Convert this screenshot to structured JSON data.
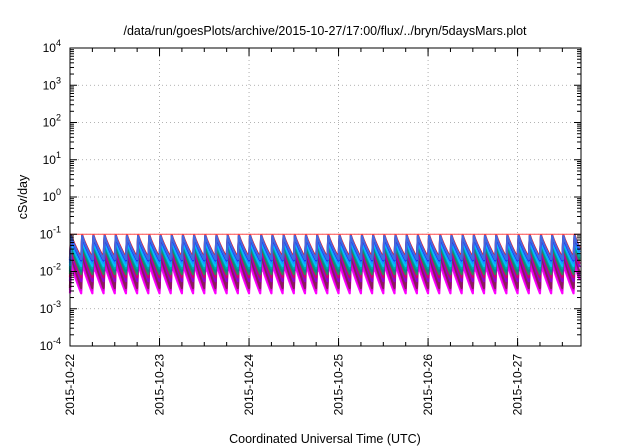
{
  "chart_data": {
    "type": "line",
    "title": "/data/run/goesPlots/archive/2015-10-27/17:00/flux/../bryn/5daysMars.plot",
    "xlabel": "Coordinated Universal Time (UTC)",
    "ylabel": "cSv/day",
    "x_range": [
      "2015-10-22T00:00",
      "2015-10-27T17:00"
    ],
    "x_ticks": [
      "2015-10-22",
      "2015-10-23",
      "2015-10-24",
      "2015-10-25",
      "2015-10-26",
      "2015-10-27"
    ],
    "y_scale": "log",
    "ylim": [
      0.0001,
      10000
    ],
    "y_ticks": [
      {
        "mantissa": "10",
        "exp": "-4"
      },
      {
        "mantissa": "10",
        "exp": "-3"
      },
      {
        "mantissa": "10",
        "exp": "-2"
      },
      {
        "mantissa": "10",
        "exp": "-1"
      },
      {
        "mantissa": "10",
        "exp": "0"
      },
      {
        "mantissa": "10",
        "exp": "1"
      },
      {
        "mantissa": "10",
        "exp": "2"
      },
      {
        "mantissa": "10",
        "exp": "3"
      },
      {
        "mantissa": "10",
        "exp": "4"
      }
    ],
    "grid": true,
    "reference_line": {
      "y": 0.1,
      "color": "#ff4d4d"
    },
    "sawtooth_period_hours": 3,
    "series": [
      {
        "color": "#ff00ff",
        "peak": 0.017,
        "trough": 0.0026
      },
      {
        "color": "#e100e1",
        "peak": 0.021,
        "trough": 0.0032
      },
      {
        "color": "#c000c0",
        "peak": 0.026,
        "trough": 0.004
      },
      {
        "color": "#8b1a5a",
        "peak": 0.031,
        "trough": 0.0036
      },
      {
        "color": "#9400d3",
        "peak": 0.038,
        "trough": 0.0055
      },
      {
        "color": "#d2006e",
        "peak": 0.045,
        "trough": 0.007
      },
      {
        "color": "#2e8b57",
        "peak": 0.052,
        "trough": 0.0085
      },
      {
        "color": "#008b8b",
        "peak": 0.058,
        "trough": 0.01
      },
      {
        "color": "#00a6a6",
        "peak": 0.062,
        "trough": 0.012
      },
      {
        "color": "#00bfff",
        "peak": 0.068,
        "trough": 0.014
      },
      {
        "color": "#1e90ff",
        "peak": 0.076,
        "trough": 0.017
      },
      {
        "color": "#0000ff",
        "peak": 0.086,
        "trough": 0.02
      },
      {
        "color": "#ff0000",
        "peak": 0.095,
        "trough": 0.023
      },
      {
        "color": "#4169e1",
        "peak": 0.09,
        "trough": 0.021
      }
    ]
  }
}
